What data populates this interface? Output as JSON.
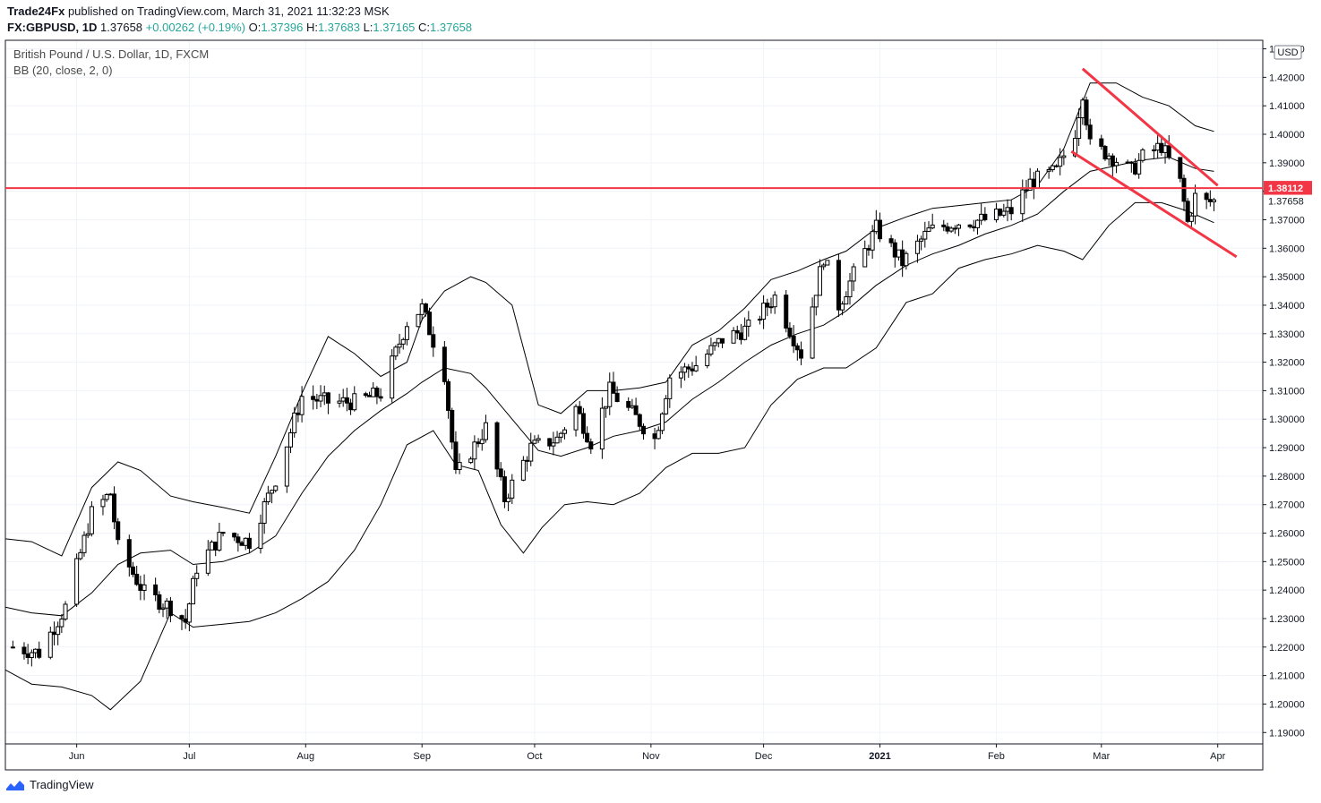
{
  "header": {
    "publisher": "Trade24Fx",
    "published_text": "published on TradingView.com, March 31, 2021 11:32:23 MSK",
    "symbol": "FX:GBPUSD, 1D",
    "last": "1.37658",
    "change": "+0.00262 (+0.19%)",
    "o_label": "O:",
    "o": "1.37396",
    "h_label": "H:",
    "h": "1.37683",
    "l_label": "L:",
    "l": "1.37165",
    "c_label": "C:",
    "c": "1.37658"
  },
  "pane": {
    "title": "British Pound / U.S. Dollar, 1D, FXCM",
    "indicator": "BB (20, close, 2, 0)"
  },
  "brand": {
    "name": "TradingView"
  },
  "colors": {
    "red_line": "#f23645",
    "candle_up": "#ffffff",
    "candle_down": "#000000",
    "band": "#000000",
    "up_text": "#26a69a"
  },
  "chart_data": {
    "type": "candlestick",
    "currency_label": "USD",
    "y_ticks": [
      "1.43000",
      "1.42000",
      "1.41000",
      "1.40000",
      "1.39000",
      "1.38000",
      "1.37000",
      "1.36000",
      "1.35000",
      "1.34000",
      "1.33000",
      "1.32000",
      "1.31000",
      "1.30000",
      "1.29000",
      "1.28000",
      "1.27000",
      "1.26000",
      "1.25000",
      "1.24000",
      "1.23000",
      "1.22000",
      "1.21000",
      "1.20000",
      "1.19000"
    ],
    "x_ticks": [
      {
        "label": "Jun",
        "date": "2020-06-01"
      },
      {
        "label": "Jul",
        "date": "2020-07-01"
      },
      {
        "label": "Aug",
        "date": "2020-08-01"
      },
      {
        "label": "Sep",
        "date": "2020-09-01"
      },
      {
        "label": "Oct",
        "date": "2020-10-01"
      },
      {
        "label": "Nov",
        "date": "2020-11-01"
      },
      {
        "label": "Dec",
        "date": "2020-12-01"
      },
      {
        "label": "2021",
        "date": "2021-01-01",
        "bold": true
      },
      {
        "label": "Feb",
        "date": "2021-02-01"
      },
      {
        "label": "Mar",
        "date": "2021-03-01"
      },
      {
        "label": "Apr",
        "date": "2021-04-01"
      }
    ],
    "ylim": [
      1.186,
      1.433
    ],
    "xlim": [
      "2020-05-13",
      "2021-04-13"
    ],
    "horizontal_line": {
      "value": 1.38112,
      "label": "1.38112"
    },
    "last_price": {
      "value": 1.37658,
      "label": "1.37658"
    },
    "trend_lines": [
      {
        "start": [
          "2021-02-24",
          1.423
        ],
        "end": [
          "2021-04-01",
          1.382
        ]
      },
      {
        "start": [
          "2021-02-21",
          1.394
        ],
        "end": [
          "2021-04-06",
          1.357
        ]
      }
    ],
    "close_path": [
      [
        "2020-05-15",
        1.22
      ],
      [
        "2020-05-22",
        1.218
      ],
      [
        "2020-05-29",
        1.234
      ],
      [
        "2020-06-05",
        1.267
      ],
      [
        "2020-06-10",
        1.274
      ],
      [
        "2020-06-12",
        1.255
      ],
      [
        "2020-06-19",
        1.239
      ],
      [
        "2020-06-26",
        1.234
      ],
      [
        "2020-06-30",
        1.229
      ],
      [
        "2020-07-03",
        1.248
      ],
      [
        "2020-07-10",
        1.26
      ],
      [
        "2020-07-17",
        1.257
      ],
      [
        "2020-07-24",
        1.279
      ],
      [
        "2020-07-31",
        1.308
      ],
      [
        "2020-08-07",
        1.306
      ],
      [
        "2020-08-14",
        1.306
      ],
      [
        "2020-08-21",
        1.309
      ],
      [
        "2020-08-28",
        1.334
      ],
      [
        "2020-09-01",
        1.339
      ],
      [
        "2020-09-07",
        1.316
      ],
      [
        "2020-09-10",
        1.28
      ],
      [
        "2020-09-18",
        1.297
      ],
      [
        "2020-09-23",
        1.272
      ],
      [
        "2020-09-30",
        1.29
      ],
      [
        "2020-10-07",
        1.293
      ],
      [
        "2020-10-12",
        1.304
      ],
      [
        "2020-10-16",
        1.292
      ],
      [
        "2020-10-21",
        1.31
      ],
      [
        "2020-10-27",
        1.302
      ],
      [
        "2020-11-02",
        1.293
      ],
      [
        "2020-11-06",
        1.315
      ],
      [
        "2020-11-13",
        1.319
      ],
      [
        "2020-11-20",
        1.328
      ],
      [
        "2020-11-27",
        1.332
      ],
      [
        "2020-12-04",
        1.343
      ],
      [
        "2020-12-11",
        1.323
      ],
      [
        "2020-12-17",
        1.357
      ],
      [
        "2020-12-21",
        1.34
      ],
      [
        "2020-12-31",
        1.367
      ],
      [
        "2021-01-07",
        1.355
      ],
      [
        "2021-01-14",
        1.366
      ],
      [
        "2021-01-21",
        1.369
      ],
      [
        "2021-01-29",
        1.37
      ],
      [
        "2021-02-05",
        1.373
      ],
      [
        "2021-02-10",
        1.383
      ],
      [
        "2021-02-17",
        1.387
      ],
      [
        "2021-02-22",
        1.401
      ],
      [
        "2021-02-24",
        1.415
      ],
      [
        "2021-02-26",
        1.396
      ],
      [
        "2021-03-03",
        1.393
      ],
      [
        "2021-03-09",
        1.387
      ],
      [
        "2021-03-12",
        1.392
      ],
      [
        "2021-03-17",
        1.396
      ],
      [
        "2021-03-22",
        1.383
      ],
      [
        "2021-03-24",
        1.369
      ],
      [
        "2021-03-26",
        1.378
      ],
      [
        "2021-03-29",
        1.376
      ],
      [
        "2021-03-31",
        1.37658
      ]
    ],
    "bb_upper": [
      [
        "2020-05-13",
        1.258
      ],
      [
        "2020-05-20",
        1.257
      ],
      [
        "2020-05-28",
        1.252
      ],
      [
        "2020-06-05",
        1.276
      ],
      [
        "2020-06-12",
        1.285
      ],
      [
        "2020-06-18",
        1.282
      ],
      [
        "2020-06-26",
        1.273
      ],
      [
        "2020-07-02",
        1.271
      ],
      [
        "2020-07-10",
        1.269
      ],
      [
        "2020-07-17",
        1.267
      ],
      [
        "2020-07-24",
        1.287
      ],
      [
        "2020-07-31",
        1.309
      ],
      [
        "2020-08-07",
        1.329
      ],
      [
        "2020-08-14",
        1.323
      ],
      [
        "2020-08-21",
        1.315
      ],
      [
        "2020-08-28",
        1.32
      ],
      [
        "2020-09-01",
        1.335
      ],
      [
        "2020-09-07",
        1.345
      ],
      [
        "2020-09-14",
        1.35
      ],
      [
        "2020-09-18",
        1.348
      ],
      [
        "2020-09-25",
        1.34
      ],
      [
        "2020-10-02",
        1.305
      ],
      [
        "2020-10-08",
        1.302
      ],
      [
        "2020-10-15",
        1.31
      ],
      [
        "2020-10-22",
        1.31
      ],
      [
        "2020-10-29",
        1.311
      ],
      [
        "2020-11-05",
        1.313
      ],
      [
        "2020-11-12",
        1.326
      ],
      [
        "2020-11-19",
        1.331
      ],
      [
        "2020-11-26",
        1.339
      ],
      [
        "2020-12-03",
        1.349
      ],
      [
        "2020-12-10",
        1.352
      ],
      [
        "2020-12-17",
        1.356
      ],
      [
        "2020-12-23",
        1.359
      ],
      [
        "2020-12-31",
        1.367
      ],
      [
        "2021-01-08",
        1.371
      ],
      [
        "2021-01-15",
        1.374
      ],
      [
        "2021-01-22",
        1.375
      ],
      [
        "2021-01-29",
        1.376
      ],
      [
        "2021-02-05",
        1.377
      ],
      [
        "2021-02-12",
        1.382
      ],
      [
        "2021-02-19",
        1.395
      ],
      [
        "2021-02-26",
        1.418
      ],
      [
        "2021-03-05",
        1.418
      ],
      [
        "2021-03-12",
        1.413
      ],
      [
        "2021-03-19",
        1.41
      ],
      [
        "2021-03-26",
        1.403
      ],
      [
        "2021-03-31",
        1.401
      ]
    ],
    "bb_middle": [
      [
        "2020-05-13",
        1.234
      ],
      [
        "2020-05-20",
        1.232
      ],
      [
        "2020-05-28",
        1.231
      ],
      [
        "2020-06-05",
        1.239
      ],
      [
        "2020-06-12",
        1.249
      ],
      [
        "2020-06-18",
        1.253
      ],
      [
        "2020-06-26",
        1.254
      ],
      [
        "2020-07-02",
        1.249
      ],
      [
        "2020-07-10",
        1.25
      ],
      [
        "2020-07-17",
        1.253
      ],
      [
        "2020-07-24",
        1.259
      ],
      [
        "2020-07-31",
        1.274
      ],
      [
        "2020-08-07",
        1.287
      ],
      [
        "2020-08-14",
        1.296
      ],
      [
        "2020-08-21",
        1.303
      ],
      [
        "2020-08-28",
        1.309
      ],
      [
        "2020-09-01",
        1.313
      ],
      [
        "2020-09-07",
        1.318
      ],
      [
        "2020-09-14",
        1.316
      ],
      [
        "2020-09-18",
        1.311
      ],
      [
        "2020-09-25",
        1.3
      ],
      [
        "2020-10-02",
        1.289
      ],
      [
        "2020-10-08",
        1.287
      ],
      [
        "2020-10-15",
        1.29
      ],
      [
        "2020-10-22",
        1.294
      ],
      [
        "2020-10-29",
        1.296
      ],
      [
        "2020-11-05",
        1.299
      ],
      [
        "2020-11-12",
        1.307
      ],
      [
        "2020-11-19",
        1.313
      ],
      [
        "2020-11-26",
        1.32
      ],
      [
        "2020-12-03",
        1.326
      ],
      [
        "2020-12-10",
        1.33
      ],
      [
        "2020-12-17",
        1.333
      ],
      [
        "2020-12-23",
        1.338
      ],
      [
        "2020-12-31",
        1.347
      ],
      [
        "2021-01-08",
        1.354
      ],
      [
        "2021-01-15",
        1.358
      ],
      [
        "2021-01-22",
        1.361
      ],
      [
        "2021-01-29",
        1.365
      ],
      [
        "2021-02-05",
        1.368
      ],
      [
        "2021-02-12",
        1.372
      ],
      [
        "2021-02-19",
        1.38
      ],
      [
        "2021-02-26",
        1.387
      ],
      [
        "2021-03-05",
        1.389
      ],
      [
        "2021-03-12",
        1.391
      ],
      [
        "2021-03-19",
        1.392
      ],
      [
        "2021-03-26",
        1.388
      ],
      [
        "2021-03-31",
        1.387
      ]
    ],
    "bb_lower": [
      [
        "2020-05-13",
        1.212
      ],
      [
        "2020-05-20",
        1.207
      ],
      [
        "2020-05-28",
        1.206
      ],
      [
        "2020-06-05",
        1.203
      ],
      [
        "2020-06-10",
        1.198
      ],
      [
        "2020-06-18",
        1.208
      ],
      [
        "2020-06-26",
        1.232
      ],
      [
        "2020-07-02",
        1.227
      ],
      [
        "2020-07-10",
        1.228
      ],
      [
        "2020-07-17",
        1.229
      ],
      [
        "2020-07-24",
        1.232
      ],
      [
        "2020-07-31",
        1.237
      ],
      [
        "2020-08-07",
        1.243
      ],
      [
        "2020-08-14",
        1.254
      ],
      [
        "2020-08-21",
        1.27
      ],
      [
        "2020-08-28",
        1.291
      ],
      [
        "2020-09-04",
        1.296
      ],
      [
        "2020-09-10",
        1.284
      ],
      [
        "2020-09-16",
        1.282
      ],
      [
        "2020-09-22",
        1.263
      ],
      [
        "2020-09-28",
        1.253
      ],
      [
        "2020-10-03",
        1.262
      ],
      [
        "2020-10-09",
        1.27
      ],
      [
        "2020-10-15",
        1.271
      ],
      [
        "2020-10-22",
        1.27
      ],
      [
        "2020-10-29",
        1.274
      ],
      [
        "2020-11-05",
        1.283
      ],
      [
        "2020-11-12",
        1.288
      ],
      [
        "2020-11-19",
        1.288
      ],
      [
        "2020-11-26",
        1.29
      ],
      [
        "2020-12-03",
        1.305
      ],
      [
        "2020-12-10",
        1.314
      ],
      [
        "2020-12-17",
        1.318
      ],
      [
        "2020-12-23",
        1.318
      ],
      [
        "2020-12-31",
        1.325
      ],
      [
        "2021-01-08",
        1.341
      ],
      [
        "2021-01-15",
        1.344
      ],
      [
        "2021-01-22",
        1.353
      ],
      [
        "2021-01-29",
        1.356
      ],
      [
        "2021-02-05",
        1.358
      ],
      [
        "2021-02-12",
        1.361
      ],
      [
        "2021-02-19",
        1.359
      ],
      [
        "2021-02-24",
        1.356
      ],
      [
        "2021-03-03",
        1.368
      ],
      [
        "2021-03-10",
        1.376
      ],
      [
        "2021-03-17",
        1.376
      ],
      [
        "2021-03-24",
        1.373
      ],
      [
        "2021-03-31",
        1.369
      ]
    ]
  }
}
